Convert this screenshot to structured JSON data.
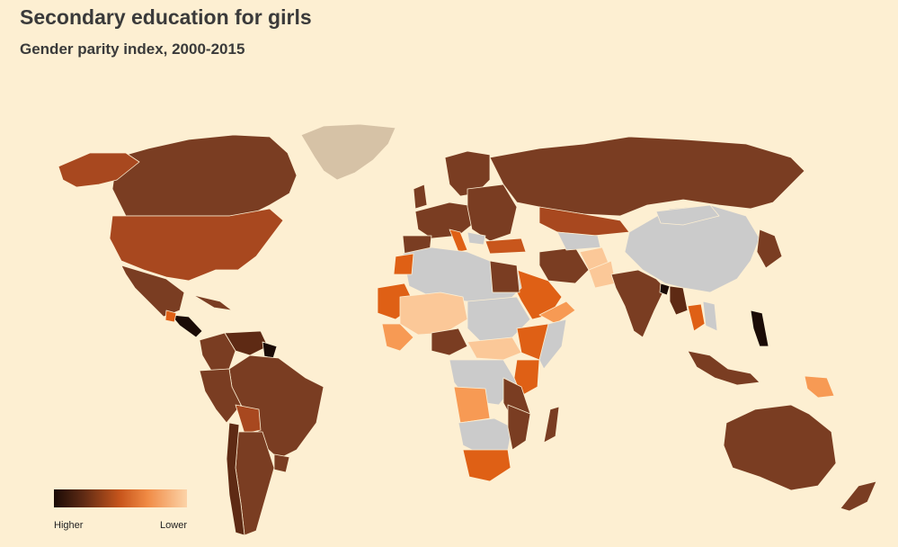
{
  "title": "Secondary education for girls",
  "subtitle": "Gender parity index, 2000-2015",
  "legend": {
    "high_label": "Higher",
    "low_label": "Lower",
    "scale_colors": [
      "#1a0b06",
      "#5e2a14",
      "#c8561c",
      "#f08a44",
      "#fcd3a8"
    ]
  },
  "colors": {
    "background": "#fdefd2",
    "no_data": "#cbcbcb",
    "greenland": "#d6c2a6",
    "high": "#7a3d22",
    "mid": "#df6015",
    "low_mid": "#f79a54",
    "low": "#fbc898",
    "very_high": "#1a0b06",
    "border": "#fdefd2"
  }
}
